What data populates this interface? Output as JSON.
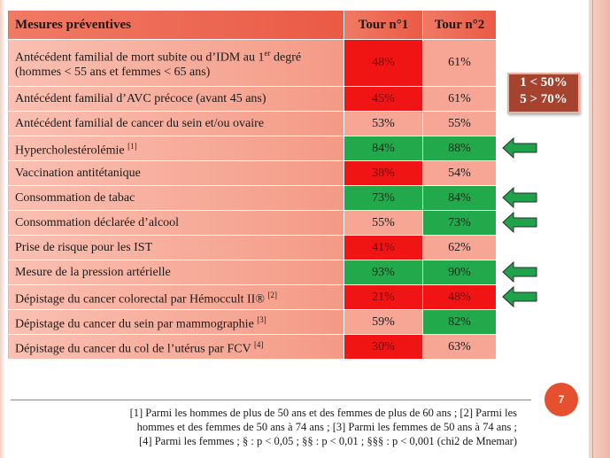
{
  "table": {
    "headers": [
      "Mesures préventives",
      "Tour n°1",
      "Tour n°2"
    ],
    "rows": [
      {
        "label": "Antécédent familial de mort subite ou d’IDM au 1",
        "label_sup": "er",
        "label_cont": " degré (hommes < 55 ans et femmes < 65 ans)",
        "t1": "48%",
        "t1_color": "red",
        "t2": "61%",
        "t2_color": "pink"
      },
      {
        "label": "Antécédent familial d’AVC précoce (avant 45 ans)",
        "t1": "45%",
        "t1_color": "red",
        "t2": "61%",
        "t2_color": "pink"
      },
      {
        "label": "Antécédent familial de cancer du sein et/ou ovaire",
        "t1": "53%",
        "t1_color": "pink",
        "t2": "55%",
        "t2_color": "pink"
      },
      {
        "label": "Hypercholestérolémie",
        "label_sup": "[1]",
        "t1": "84%",
        "t1_color": "green",
        "t2": "88%",
        "t2_color": "green"
      },
      {
        "label": "Vaccination antitétanique",
        "t1": "38%",
        "t1_color": "red",
        "t2": "54%",
        "t2_color": "pink"
      },
      {
        "label": "Consommation de tabac",
        "t1": "73%",
        "t1_color": "green",
        "t2": "84%",
        "t2_color": "green"
      },
      {
        "label": "Consommation déclarée d’alcool",
        "t1": "55%",
        "t1_color": "pink",
        "t2": "73%",
        "t2_color": "green"
      },
      {
        "label": "Prise de risque pour les IST",
        "t1": "41%",
        "t1_color": "red",
        "t2": "62%",
        "t2_color": "pink"
      },
      {
        "label": "Mesure de la pression artérielle",
        "t1": "93%",
        "t1_color": "green",
        "t2": "90%",
        "t2_color": "green"
      },
      {
        "label": "Dépistage du cancer colorectal par Hémoccult II®",
        "label_sup": "[2]",
        "t1": "21%",
        "t1_color": "red",
        "t2": "48%",
        "t2_color": "red"
      },
      {
        "label": "Dépistage du cancer du sein par mammographie",
        "label_sup": "[3]",
        "t1": "59%",
        "t1_color": "pink",
        "t2": "82%",
        "t2_color": "green"
      },
      {
        "label": "Dépistage du cancer du col de l’utérus par FCV",
        "label_sup": "[4]",
        "t1": "30%",
        "t1_color": "red",
        "t2": "63%",
        "t2_color": "pink"
      }
    ]
  },
  "legend": {
    "line1": "1 < 50%",
    "line2": "5 > 70%"
  },
  "arrows": [
    {
      "row": "Hypercholestérolémie",
      "color": "green"
    },
    {
      "row": "Consommation de tabac",
      "color": "green"
    },
    {
      "row": "Consommation déclarée d’alcool",
      "color": "green"
    },
    {
      "row": "Mesure de la pression artérielle",
      "color": "green"
    },
    {
      "row": "Dépistage du cancer colorectal par Hémoccult II®",
      "color": "red"
    },
    {
      "row": "Dépistage du cancer du sein par mammographie",
      "color": "green"
    }
  ],
  "colors": {
    "red": "#f01414",
    "green": "#22a94c",
    "pink": "#f7a696",
    "arrow_green": "#1ea34a",
    "arrow_red": "#ea1010",
    "badge": "#e6502f"
  },
  "page_number": "7",
  "footnote": {
    "line1": "[1] Parmi les hommes de plus de 50 ans et des femmes de plus de 60 ans ; [2] Parmi les",
    "line2": "hommes et des femmes de 50 ans à 74 ans ; [3] Parmi les femmes de 50 ans à 74 ans ;",
    "line3": "[4] Parmi les femmes ; § : p < 0,05 ; §§ : p < 0,01 ; §§§ : p < 0,001 (chi2 de Mnemar)"
  }
}
